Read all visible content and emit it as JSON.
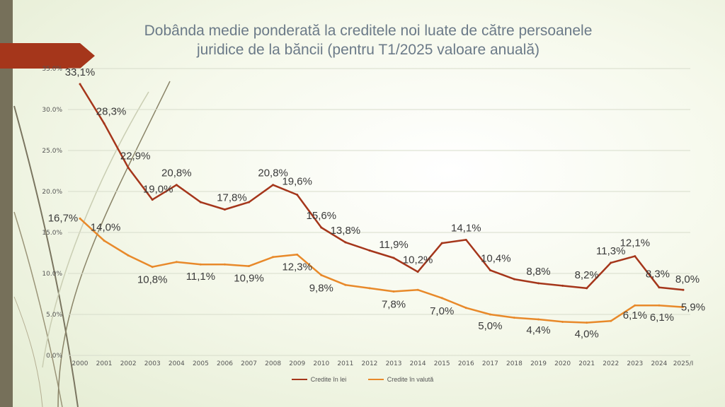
{
  "title_line1": "Dobânda medie ponderată la creditele noi luate de către persoanele",
  "title_line2": "juridice de la băncii (pentru T1/2025 valoare anuală)",
  "chart_data": {
    "type": "line",
    "title": "Dobânda medie ponderată la creditele noi luate de către persoanele juridice de la băncii (pentru T1/2025 valoare anuală)",
    "categories": [
      "2000",
      "2001",
      "2002",
      "2003",
      "2004",
      "2005",
      "2006",
      "2007",
      "2008",
      "2009",
      "2010",
      "2011",
      "2012",
      "2013",
      "2014",
      "2015",
      "2016",
      "2017",
      "2018",
      "2019",
      "2020",
      "2021",
      "2022",
      "2023",
      "2024",
      "2025/I"
    ],
    "yticks": [
      "0.0%",
      "5.0%",
      "10.0%",
      "15.0%",
      "20.0%",
      "25.0%",
      "30.0%",
      "35.0%"
    ],
    "ylim": [
      0,
      35
    ],
    "grid": true,
    "legend_position": "bottom",
    "series": [
      {
        "name": "Credite în lei",
        "color": "#a5361b",
        "values": [
          33.1,
          28.3,
          22.9,
          19.0,
          20.8,
          18.7,
          17.8,
          18.7,
          20.8,
          19.6,
          15.6,
          13.8,
          12.8,
          11.9,
          10.2,
          13.7,
          14.1,
          10.4,
          9.3,
          8.8,
          8.5,
          8.2,
          11.3,
          12.1,
          8.3,
          8.0
        ],
        "labels": [
          "33,1%",
          "28,3%",
          "22,9%",
          "19,0%",
          "20,8%",
          "",
          "17,8%",
          "",
          "20,8%",
          "19,6%",
          "15,6%",
          "13,8%",
          "",
          "11,9%",
          "10,2%",
          "",
          "14,1%",
          "10,4%",
          "",
          "8,8%",
          "",
          "8,2%",
          "11,3%",
          "12,1%",
          "8,3%",
          "8,0%"
        ]
      },
      {
        "name": "Credite în valută",
        "color": "#e8892a",
        "values": [
          16.7,
          14.0,
          12.2,
          10.8,
          11.4,
          11.1,
          11.1,
          10.9,
          12.0,
          12.3,
          9.8,
          8.6,
          8.2,
          7.8,
          8.0,
          7.0,
          5.8,
          5.0,
          4.6,
          4.4,
          4.1,
          4.0,
          4.2,
          6.1,
          6.1,
          5.9
        ],
        "labels": [
          "16,7%",
          "14,0%",
          "",
          "10,8%",
          "",
          "11,1%",
          "",
          "10,9%",
          "",
          "12,3%",
          "9,8%",
          "",
          "",
          "7,8%",
          "",
          "7,0%",
          "",
          "5,0%",
          "",
          "4,4%",
          "",
          "4,0%",
          "",
          "6,1%",
          "6,1%",
          "5,9%"
        ]
      }
    ]
  }
}
